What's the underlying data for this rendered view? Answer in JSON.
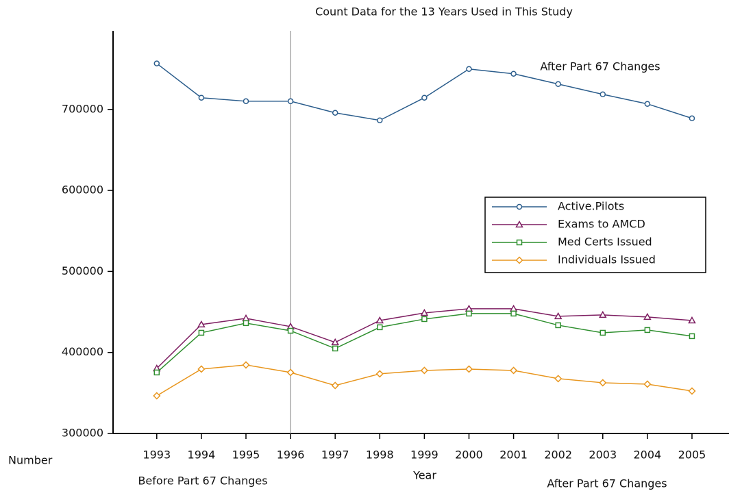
{
  "chart_data": {
    "type": "line",
    "title": "Count Data for the 13 Years Used in This Study",
    "x_label": "Year",
    "y_label": "Number",
    "x": [
      1993,
      1994,
      1995,
      1996,
      1997,
      1998,
      1999,
      2000,
      2001,
      2002,
      2003,
      2004,
      2005
    ],
    "series": [
      {
        "name": "Active.Pilots",
        "color": "#2b5d8c",
        "marker": "circle",
        "values": [
          756700,
          714400,
          710100,
          710100,
          695800,
          686500,
          714400,
          749900,
          744000,
          731300,
          718600,
          706800,
          689000
        ]
      },
      {
        "name": "Exams to AMCD",
        "color": "#7e1f62",
        "marker": "triangle",
        "values": [
          380300,
          434500,
          442100,
          431900,
          412500,
          439500,
          448800,
          453900,
          453900,
          444600,
          446300,
          443800,
          439500
        ]
      },
      {
        "name": "Med Certs Issued",
        "color": "#2f8f2f",
        "marker": "square",
        "values": [
          375300,
          424300,
          436200,
          426800,
          404900,
          431100,
          441200,
          448000,
          448000,
          433600,
          424300,
          427700,
          420100
        ]
      },
      {
        "name": "Individuals Issued",
        "color": "#e8961e",
        "marker": "diamond",
        "values": [
          346500,
          379500,
          384600,
          375300,
          359200,
          373600,
          377800,
          379500,
          377800,
          367700,
          362600,
          360900,
          352400
        ]
      }
    ],
    "xlim": [
      1992.02,
      2005.83
    ],
    "ylim": [
      300000,
      797000
    ],
    "xticks": [
      1993,
      1994,
      1995,
      1996,
      1997,
      1998,
      1999,
      2000,
      2001,
      2002,
      2003,
      2004,
      2005
    ],
    "yticks": [
      300000,
      400000,
      500000,
      600000,
      700000
    ],
    "vline": 1996,
    "annotations": [
      "After Part 67 Changes",
      "Before Part 67 Changes",
      "After Part 67 Changes"
    ],
    "legend": "right"
  }
}
